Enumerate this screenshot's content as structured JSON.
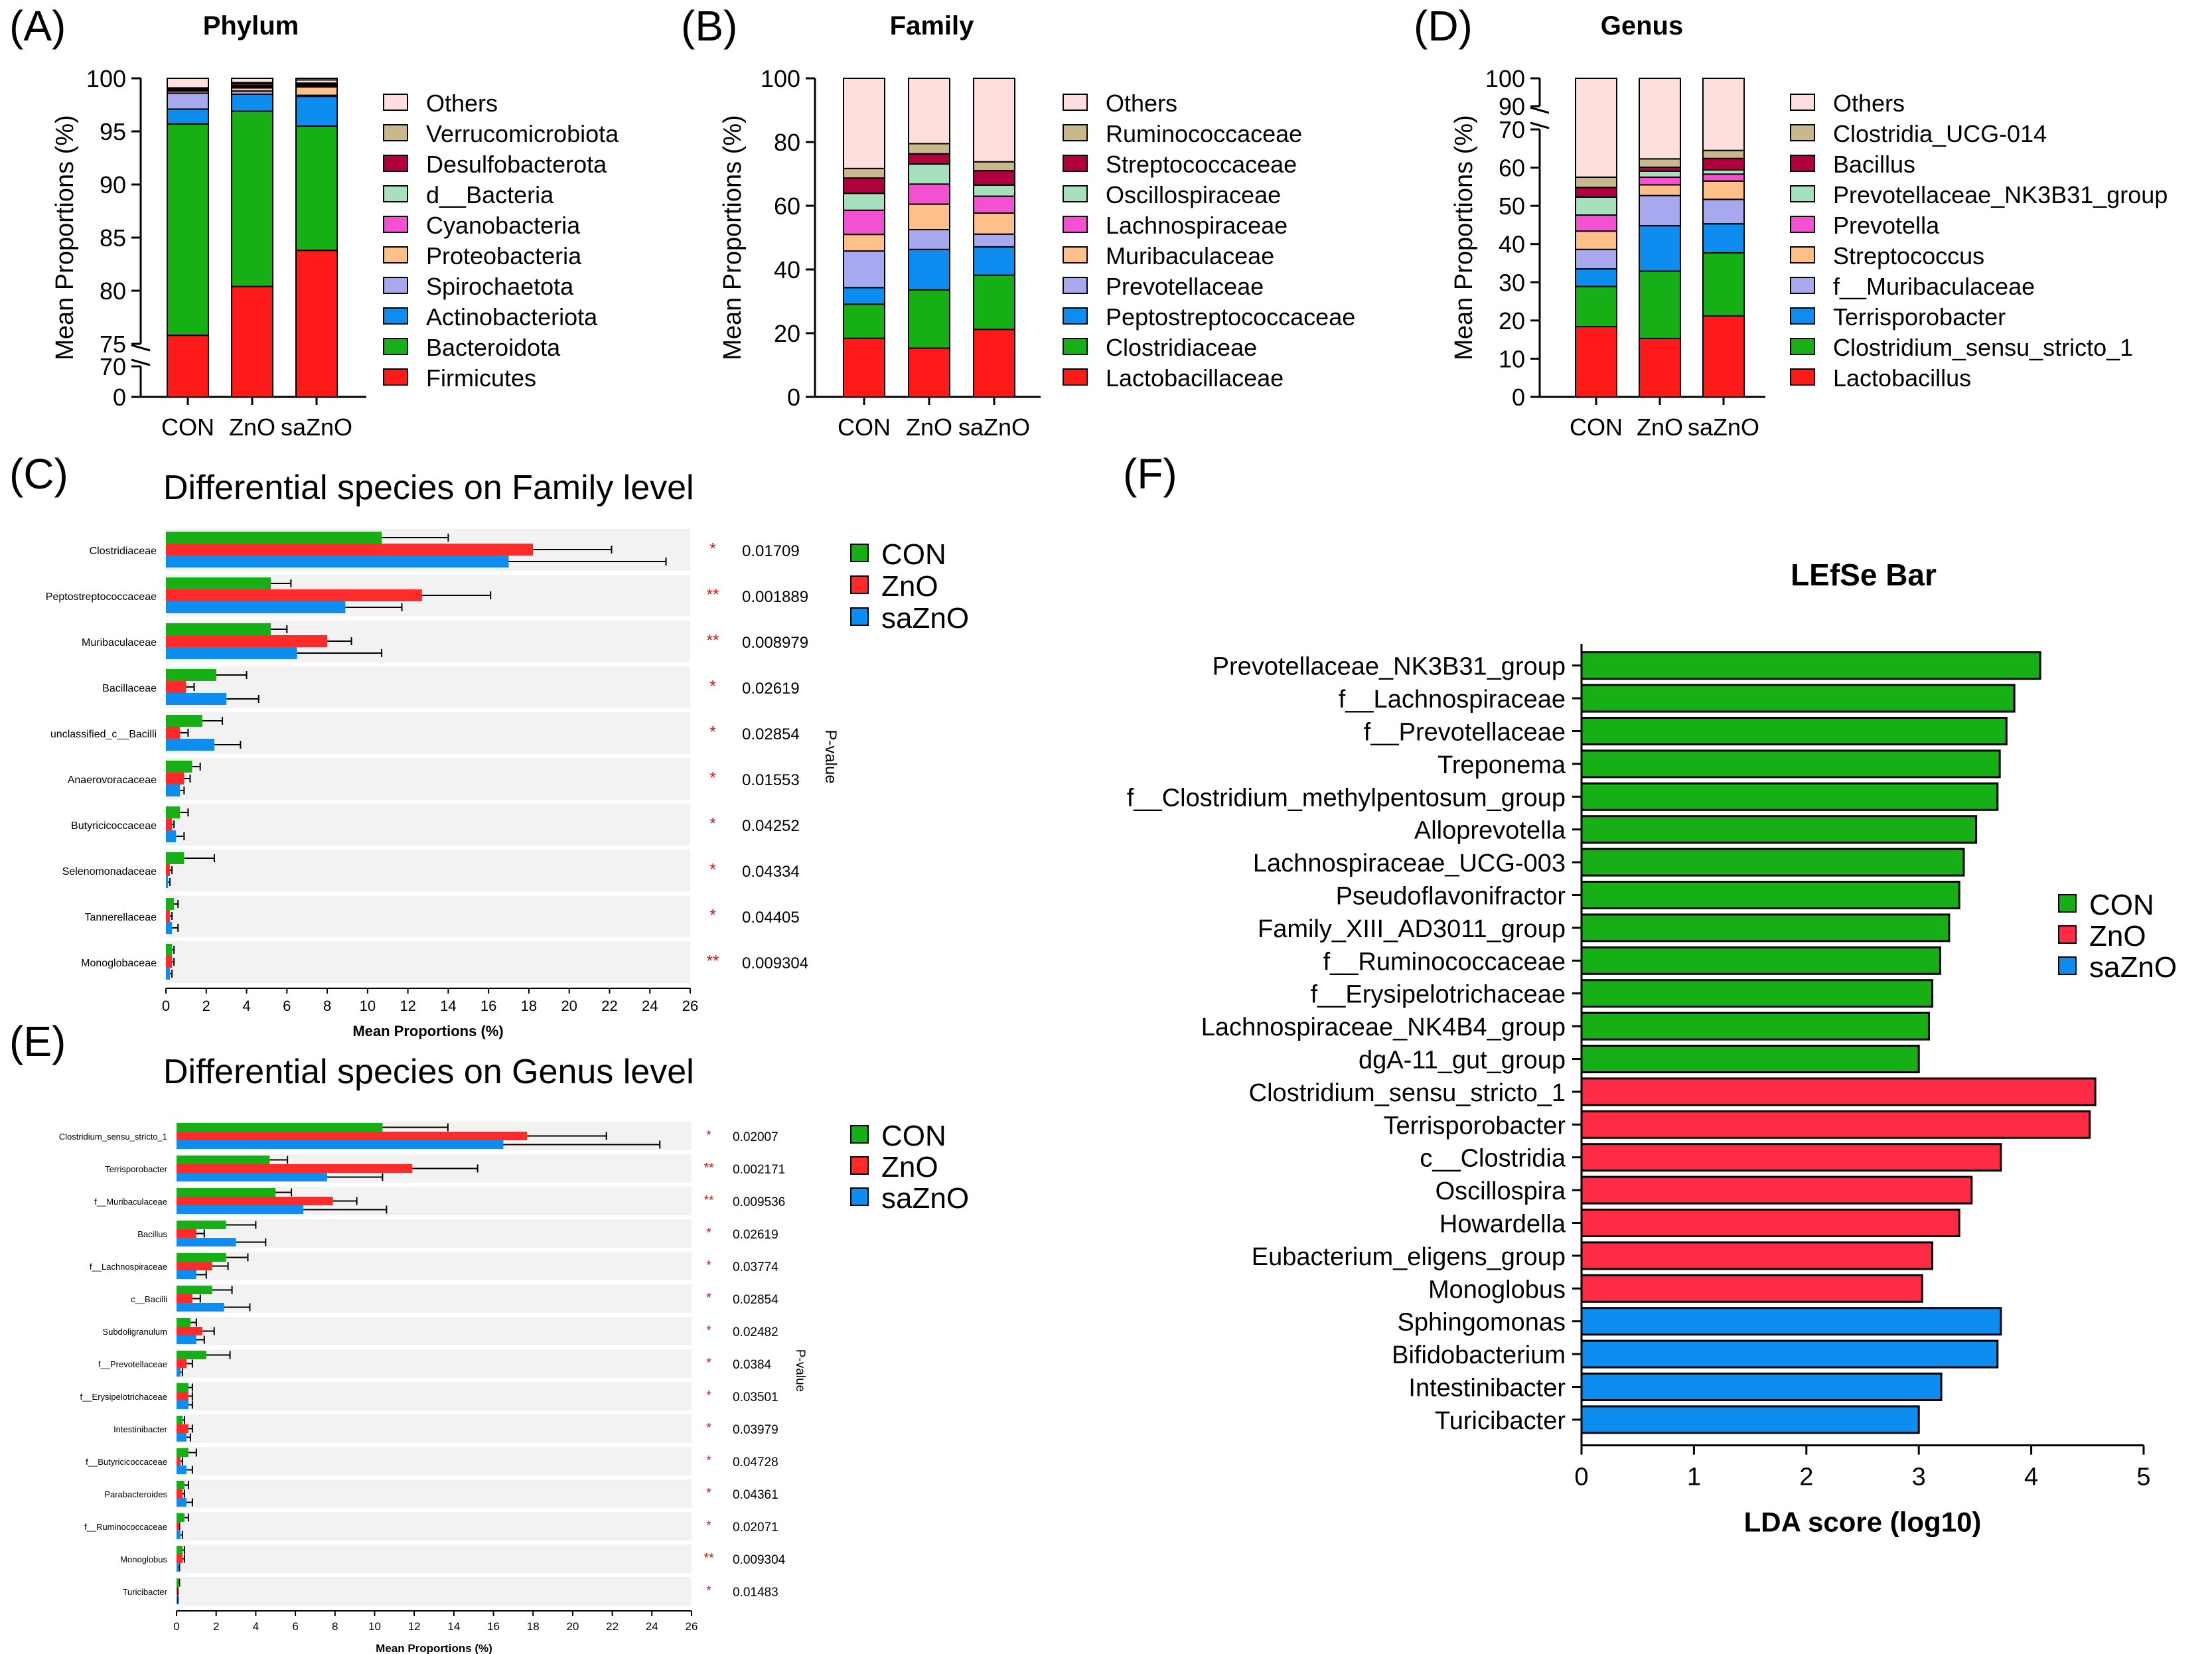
{
  "figure": {
    "panel_labels": [
      "(A)",
      "(B)",
      "(D)",
      "(C)",
      "(E)",
      "(F)"
    ]
  },
  "chart_data": [
    {
      "id": "A",
      "type": "stacked-bar",
      "title": "Phylum",
      "ylabel": "Mean Proportions (%)",
      "categories": [
        "CON",
        "ZnO",
        "saZnO"
      ],
      "axis_break": {
        "lower": [
          0,
          70
        ],
        "upper": [
          75,
          100
        ],
        "lower_ticks": [
          0,
          70
        ],
        "upper_ticks": [
          75,
          80,
          85,
          90,
          95,
          100
        ]
      },
      "series": [
        {
          "name": "Firmicutes",
          "color": "#ff1a1a",
          "values": [
            75.8,
            80.4,
            83.8
          ]
        },
        {
          "name": "Bacteroidota",
          "color": "#16b016",
          "values": [
            19.9,
            16.5,
            11.7
          ]
        },
        {
          "name": "Actinobacteriota",
          "color": "#0d8df0",
          "values": [
            1.4,
            1.6,
            2.8
          ]
        },
        {
          "name": "Spirochaetota",
          "color": "#a8a8ee",
          "values": [
            1.5,
            0.3,
            0.1
          ]
        },
        {
          "name": "Proteobacteria",
          "color": "#ffbf88",
          "values": [
            0.2,
            0.3,
            0.8
          ]
        },
        {
          "name": "Cyanobacteria",
          "color": "#f450d2",
          "values": [
            0.05,
            0.1,
            0.05
          ]
        },
        {
          "name": "d__Bacteria",
          "color": "#a6e0bd",
          "values": [
            0.05,
            0.1,
            0.1
          ]
        },
        {
          "name": "Desulfobacterota",
          "color": "#b0003d",
          "values": [
            0.1,
            0.2,
            0.1
          ]
        },
        {
          "name": "Verrucomicrobiota",
          "color": "#c7b98c",
          "values": [
            0.1,
            0.1,
            0.1
          ]
        },
        {
          "name": "Others",
          "color": "#ffdede",
          "values": [
            0.9,
            0.4,
            0.3
          ]
        }
      ],
      "legend_order": [
        "Others",
        "Verrucomicrobiota",
        "Desulfobacterota",
        "d__Bacteria",
        "Cyanobacteria",
        "Proteobacteria",
        "Spirochaetota",
        "Actinobacteriota",
        "Bacteroidota",
        "Firmicutes"
      ]
    },
    {
      "id": "B",
      "type": "stacked-bar",
      "title": "Family",
      "ylabel": "Mean Proportions (%)",
      "categories": [
        "CON",
        "ZnO",
        "saZnO"
      ],
      "ylim": [
        0,
        100
      ],
      "yticks": [
        0,
        20,
        40,
        60,
        80,
        100
      ],
      "series": [
        {
          "name": "Lactobacillaceae",
          "color": "#ff1a1a",
          "values": [
            18.4,
            15.3,
            21.2
          ]
        },
        {
          "name": "Clostridiaceae",
          "color": "#16b016",
          "values": [
            10.7,
            18.3,
            17.0
          ]
        },
        {
          "name": "Peptostreptococcaceae",
          "color": "#0d8df0",
          "values": [
            5.2,
            12.7,
            8.9
          ]
        },
        {
          "name": "Prevotellaceae",
          "color": "#a8a8ee",
          "values": [
            11.5,
            6.2,
            4.0
          ]
        },
        {
          "name": "Muribaculaceae",
          "color": "#ffbf88",
          "values": [
            5.2,
            8.0,
            6.6
          ]
        },
        {
          "name": "Lachnospiraceae",
          "color": "#f450d2",
          "values": [
            7.6,
            6.3,
            5.3
          ]
        },
        {
          "name": "Oscillospiraceae",
          "color": "#a6e0bd",
          "values": [
            5.3,
            6.3,
            3.5
          ]
        },
        {
          "name": "Streptococcaceae",
          "color": "#b0003d",
          "values": [
            4.8,
            3.2,
            4.5
          ]
        },
        {
          "name": "Ruminococcaceae",
          "color": "#c7b98c",
          "values": [
            3.0,
            3.2,
            2.8
          ]
        },
        {
          "name": "Others",
          "color": "#ffdede",
          "values": [
            28.3,
            20.5,
            26.2
          ]
        }
      ],
      "legend_order": [
        "Others",
        "Ruminococcaceae",
        "Streptococcaceae",
        "Oscillospiraceae",
        "Lachnospiraceae",
        "Muribaculaceae",
        "Prevotellaceae",
        "Peptostreptococcaceae",
        "Clostridiaceae",
        "Lactobacillaceae"
      ]
    },
    {
      "id": "D",
      "type": "stacked-bar",
      "title": "Genus",
      "ylabel": "Mean Proportions (%)",
      "categories": [
        "CON",
        "ZnO",
        "saZnO"
      ],
      "axis_break": {
        "lower": [
          0,
          70
        ],
        "upper": [
          90,
          100
        ],
        "lower_ticks": [
          0,
          10,
          20,
          30,
          40,
          50,
          60,
          70
        ],
        "upper_ticks": [
          90,
          100
        ]
      },
      "series": [
        {
          "name": "Lactobacillus",
          "color": "#ff1a1a",
          "values": [
            18.4,
            15.3,
            21.2
          ]
        },
        {
          "name": "Clostridium_sensu_stricto_1",
          "color": "#16b016",
          "values": [
            10.5,
            17.6,
            16.5
          ]
        },
        {
          "name": "Terrisporobacter",
          "color": "#0d8df0",
          "values": [
            4.6,
            11.9,
            7.6
          ]
        },
        {
          "name": "f__Muribaculaceae",
          "color": "#a8a8ee",
          "values": [
            5.1,
            7.9,
            6.4
          ]
        },
        {
          "name": "Streptococcus",
          "color": "#ffbf88",
          "values": [
            4.8,
            2.8,
            4.8
          ]
        },
        {
          "name": "Prevotella",
          "color": "#f450d2",
          "values": [
            4.2,
            2.0,
            1.8
          ]
        },
        {
          "name": "Prevotellaceae_NK3B31_group",
          "color": "#a6e0bd",
          "values": [
            4.7,
            1.6,
            1.1
          ]
        },
        {
          "name": "Bacillus",
          "color": "#b0003d",
          "values": [
            2.5,
            1.0,
            3.0
          ]
        },
        {
          "name": "Clostridia_UCG-014",
          "color": "#c7b98c",
          "values": [
            2.7,
            2.2,
            2.1
          ]
        },
        {
          "name": "Others",
          "color": "#ffdede",
          "values": [
            42.5,
            37.7,
            35.5
          ]
        }
      ],
      "legend_order": [
        "Others",
        "Clostridia_UCG-014",
        "Bacillus",
        "Prevotellaceae_NK3B31_group",
        "Prevotella",
        "Streptococcus",
        "f__Muribaculaceae",
        "Terrisporobacter",
        "Clostridium_sensu_stricto_1",
        "Lactobacillus"
      ]
    },
    {
      "id": "C",
      "type": "bar",
      "orientation": "horizontal",
      "title": "Differential species on Family level",
      "xlabel": "Mean Proportions (%)",
      "side_label": "P-value",
      "xlim": [
        0,
        26
      ],
      "xticks": [
        0,
        2,
        4,
        6,
        8,
        10,
        12,
        14,
        16,
        18,
        20,
        22,
        24,
        26
      ],
      "groups": [
        {
          "name": "CON",
          "color": "#16b016"
        },
        {
          "name": "ZnO",
          "color": "#ff2b2b"
        },
        {
          "name": "saZnO",
          "color": "#0d8df0"
        }
      ],
      "categories": [
        "Clostridiaceae",
        "Peptostreptococcaceae",
        "Muribaculaceae",
        "Bacillaceae",
        "unclassified_c__Bacilli",
        "Anaerovoracaceae",
        "Butyricicoccaceae",
        "Selenomonadaceae",
        "Tannerellaceae",
        "Monoglobaceae"
      ],
      "values": [
        [
          10.7,
          18.2,
          17.0
        ],
        [
          5.2,
          12.7,
          8.9
        ],
        [
          5.2,
          8.0,
          6.5
        ],
        [
          2.5,
          1.0,
          3.0
        ],
        [
          1.8,
          0.7,
          2.4
        ],
        [
          1.3,
          0.9,
          0.7
        ],
        [
          0.7,
          0.3,
          0.5
        ],
        [
          0.9,
          0.2,
          0.1
        ],
        [
          0.4,
          0.2,
          0.3
        ],
        [
          0.3,
          0.3,
          0.2
        ]
      ],
      "errors": [
        [
          3.3,
          3.9,
          7.8
        ],
        [
          1.0,
          3.4,
          2.8
        ],
        [
          0.8,
          1.2,
          4.2
        ],
        [
          1.5,
          0.4,
          1.6
        ],
        [
          1.0,
          0.4,
          1.3
        ],
        [
          0.4,
          0.3,
          0.2
        ],
        [
          0.4,
          0.1,
          0.4
        ],
        [
          1.5,
          0.1,
          0.1
        ],
        [
          0.2,
          0.1,
          0.3
        ],
        [
          0.1,
          0.1,
          0.1
        ]
      ],
      "stars": [
        "*",
        "**",
        "**",
        "*",
        "*",
        "*",
        "*",
        "*",
        "*",
        "**"
      ],
      "pvalues": [
        "0.01709",
        "0.001889",
        "0.008979",
        "0.02619",
        "0.02854",
        "0.01553",
        "0.04252",
        "0.04334",
        "0.04405",
        "0.009304"
      ]
    },
    {
      "id": "E",
      "type": "bar",
      "orientation": "horizontal",
      "title": "Differential species on Genus level",
      "xlabel": "Mean Proportions (%)",
      "side_label": "P-value",
      "xlim": [
        0,
        26
      ],
      "xticks": [
        0,
        2,
        4,
        6,
        8,
        10,
        12,
        14,
        16,
        18,
        20,
        22,
        24,
        26
      ],
      "groups": [
        {
          "name": "CON",
          "color": "#16b016"
        },
        {
          "name": "ZnO",
          "color": "#ff2b2b"
        },
        {
          "name": "saZnO",
          "color": "#0d8df0"
        }
      ],
      "categories": [
        "Clostridium_sensu_stricto_1",
        "Terrisporobacter",
        "f__Muribaculaceae",
        "Bacillus",
        "f__Lachnospiraceae",
        "c__Bacilli",
        "Subdoligranulum",
        "f__Prevotellaceae",
        "f__Erysipelotrichaceae",
        "Intestinibacter",
        "f__Butyricicoccaceae",
        "Parabacteroides",
        "f__Ruminococcaceae",
        "Monoglobus",
        "Turicibacter"
      ],
      "values": [
        [
          10.4,
          17.7,
          16.5
        ],
        [
          4.7,
          11.9,
          7.6
        ],
        [
          5.0,
          7.9,
          6.4
        ],
        [
          2.5,
          1.0,
          3.0
        ],
        [
          2.5,
          1.8,
          1.0
        ],
        [
          1.8,
          0.8,
          2.4
        ],
        [
          0.7,
          1.3,
          1.0
        ],
        [
          1.5,
          0.5,
          0.2
        ],
        [
          0.6,
          0.6,
          0.6
        ],
        [
          0.3,
          0.6,
          0.5
        ],
        [
          0.6,
          0.2,
          0.5
        ],
        [
          0.4,
          0.3,
          0.5
        ],
        [
          0.4,
          0.1,
          0.2
        ],
        [
          0.3,
          0.3,
          0.1
        ],
        [
          0.1,
          0.05,
          0.05
        ]
      ],
      "errors": [
        [
          3.3,
          4.0,
          7.9
        ],
        [
          0.9,
          3.3,
          2.8
        ],
        [
          0.8,
          1.2,
          4.2
        ],
        [
          1.5,
          0.4,
          1.5
        ],
        [
          1.1,
          0.8,
          0.5
        ],
        [
          1.0,
          0.4,
          1.3
        ],
        [
          0.3,
          0.6,
          0.4
        ],
        [
          1.2,
          0.3,
          0.1
        ],
        [
          0.2,
          0.2,
          0.2
        ],
        [
          0.1,
          0.2,
          0.2
        ],
        [
          0.4,
          0.1,
          0.3
        ],
        [
          0.2,
          0.1,
          0.3
        ],
        [
          0.2,
          0.05,
          0.1
        ],
        [
          0.1,
          0.1,
          0.05
        ],
        [
          0.05,
          0.02,
          0.02
        ]
      ],
      "stars": [
        "*",
        "**",
        "**",
        "*",
        "*",
        "*",
        "*",
        "*",
        "*",
        "*",
        "*",
        "*",
        "*",
        "**",
        "*"
      ],
      "pvalues": [
        "0.02007",
        "0.002171",
        "0.009536",
        "0.02619",
        "0.03774",
        "0.02854",
        "0.02482",
        "0.0384",
        "0.03501",
        "0.03979",
        "0.04728",
        "0.04361",
        "0.02071",
        "0.009304",
        "0.01483"
      ]
    },
    {
      "id": "F",
      "type": "bar",
      "orientation": "horizontal",
      "title": "LEfSe Bar",
      "xlabel": "LDA score (log10)",
      "xlim": [
        0,
        5
      ],
      "xticks": [
        0,
        1,
        2,
        3,
        4,
        5
      ],
      "groups": [
        {
          "name": "CON",
          "color": "#16b016"
        },
        {
          "name": "ZnO",
          "color": "#ff2b45"
        },
        {
          "name": "saZnO",
          "color": "#0d8df0"
        }
      ],
      "taxa": [
        {
          "name": "Prevotellaceae_NK3B31_group",
          "group": "CON",
          "value": 4.08
        },
        {
          "name": "f__Lachnospiraceae",
          "group": "CON",
          "value": 3.85
        },
        {
          "name": "f__Prevotellaceae",
          "group": "CON",
          "value": 3.78
        },
        {
          "name": "Treponema",
          "group": "CON",
          "value": 3.72
        },
        {
          "name": "f__Clostridium_methylpentosum_group",
          "group": "CON",
          "value": 3.7
        },
        {
          "name": "Alloprevotella",
          "group": "CON",
          "value": 3.51
        },
        {
          "name": "Lachnospiraceae_UCG-003",
          "group": "CON",
          "value": 3.4
        },
        {
          "name": "Pseudoflavonifractor",
          "group": "CON",
          "value": 3.36
        },
        {
          "name": "Family_XIII_AD3011_group",
          "group": "CON",
          "value": 3.27
        },
        {
          "name": "f__Ruminococcaceae",
          "group": "CON",
          "value": 3.19
        },
        {
          "name": "f__Erysipelotrichaceae",
          "group": "CON",
          "value": 3.12
        },
        {
          "name": "Lachnospiraceae_NK4B4_group",
          "group": "CON",
          "value": 3.09
        },
        {
          "name": "dgA-11_gut_group",
          "group": "CON",
          "value": 3.0
        },
        {
          "name": "Clostridium_sensu_stricto_1",
          "group": "ZnO",
          "value": 4.57
        },
        {
          "name": "Terrisporobacter",
          "group": "ZnO",
          "value": 4.52
        },
        {
          "name": "c__Clostridia",
          "group": "ZnO",
          "value": 3.73
        },
        {
          "name": "Oscillospira",
          "group": "ZnO",
          "value": 3.47
        },
        {
          "name": "Howardella",
          "group": "ZnO",
          "value": 3.36
        },
        {
          "name": "Eubacterium_eligens_group",
          "group": "ZnO",
          "value": 3.12
        },
        {
          "name": "Monoglobus",
          "group": "ZnO",
          "value": 3.03
        },
        {
          "name": "Sphingomonas",
          "group": "saZnO",
          "value": 3.73
        },
        {
          "name": "Bifidobacterium",
          "group": "saZnO",
          "value": 3.7
        },
        {
          "name": "Intestinibacter",
          "group": "saZnO",
          "value": 3.2
        },
        {
          "name": "Turicibacter",
          "group": "saZnO",
          "value": 3.0
        }
      ]
    }
  ]
}
